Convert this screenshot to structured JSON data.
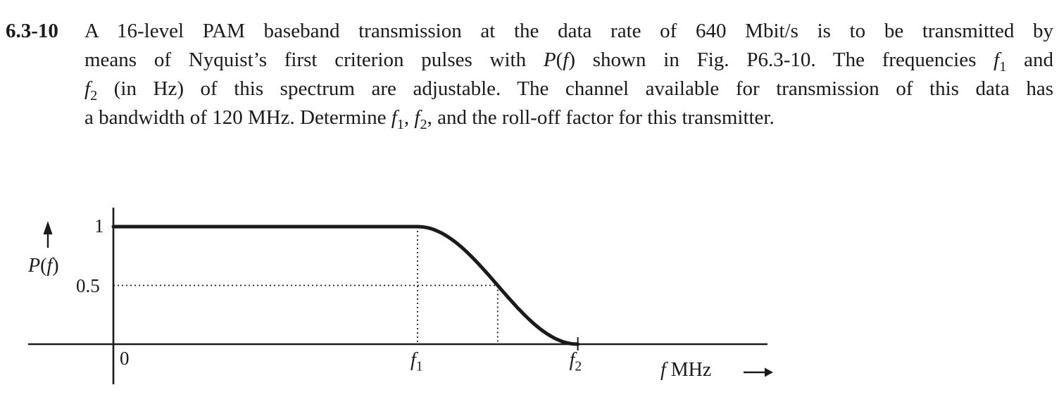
{
  "colors": {
    "ink": "#1a1a1a",
    "background": "#ffffff"
  },
  "problem": {
    "number": "6.3-10",
    "lines": [
      [
        {
          "t": "A 16-level PAM baseband transmission at the data rate of 640 Mbit/s is to be transmitted by"
        }
      ],
      [
        {
          "t": "means of Nyquist’s first criterion pulses with "
        },
        {
          "t": "P",
          "i": true
        },
        {
          "t": "("
        },
        {
          "t": "f",
          "i": true
        },
        {
          "t": ") shown in Fig. P6.3-10. The frequencies "
        },
        {
          "t": "f",
          "i": true
        },
        {
          "t": "1",
          "sub": true
        },
        {
          "t": " and"
        }
      ],
      [
        {
          "t": "f",
          "i": true
        },
        {
          "t": "2",
          "sub": true
        },
        {
          "t": " (in Hz) of this spectrum are adjustable. The channel available for transmission of this data has"
        }
      ],
      [
        {
          "t": "a bandwidth of 120 MHz. Determine "
        },
        {
          "t": "f",
          "i": true
        },
        {
          "t": "1",
          "sub": true
        },
        {
          "t": ", "
        },
        {
          "t": "f",
          "i": true
        },
        {
          "t": "2",
          "sub": true
        },
        {
          "t": ", and the roll-off factor for this transmitter."
        }
      ]
    ]
  },
  "chart_data": {
    "type": "line",
    "title": "",
    "xlabel": "f MHz",
    "ylabel": "P(f)",
    "ylim": [
      0,
      1
    ],
    "y_tick_labels": [
      "1",
      "0.5"
    ],
    "x_tick_labels": [
      "0",
      "f1",
      "f2"
    ],
    "curve": {
      "shape": "Nyquist first-criterion raised-cosine spectrum",
      "description": "P(f) = 1 for 0 <= f <= f1; smooth half-cosine roll-off from 1 down to 0 between f1 and f2; P(f) = 0 for f > f2",
      "midpoint_value": 0.5,
      "points_normalized": [
        [
          0,
          1
        ],
        [
          0.465,
          1
        ],
        [
          0.5875,
          0.5
        ],
        [
          0.71,
          0
        ]
      ]
    },
    "guides": [
      {
        "style": "dotted",
        "orientation": "vertical",
        "x": "f1",
        "y_from": 1,
        "y_to": 0
      },
      {
        "style": "dotted",
        "orientation": "horizontal",
        "y": 0.5,
        "x_from": "0",
        "x_to": "(f1+f2)/2"
      },
      {
        "style": "dotted",
        "orientation": "vertical",
        "x": "(f1+f2)/2",
        "y_from": 0.5,
        "y_to": 0
      }
    ],
    "layout": {
      "f1_axis_fraction": 0.465,
      "f2_axis_fraction": 0.71,
      "grid": false,
      "legend": false,
      "x_axis_arrow": true,
      "y_axis_arrow": true
    },
    "labels": {
      "y1": "1",
      "y05": "0.5",
      "x0": "0",
      "f1_segments": [
        {
          "t": "f",
          "i": true
        },
        {
          "t": "1",
          "sub": true
        }
      ],
      "f2_segments": [
        {
          "t": "f",
          "i": true
        },
        {
          "t": "2",
          "sub": true
        }
      ],
      "xlabel_segments": [
        {
          "t": "f",
          "i": true
        },
        {
          "t": " MHz"
        }
      ],
      "ylabel_segments": [
        {
          "t": "P",
          "i": true
        },
        {
          "t": "("
        },
        {
          "t": "f",
          "i": true
        },
        {
          "t": ")"
        }
      ]
    }
  }
}
